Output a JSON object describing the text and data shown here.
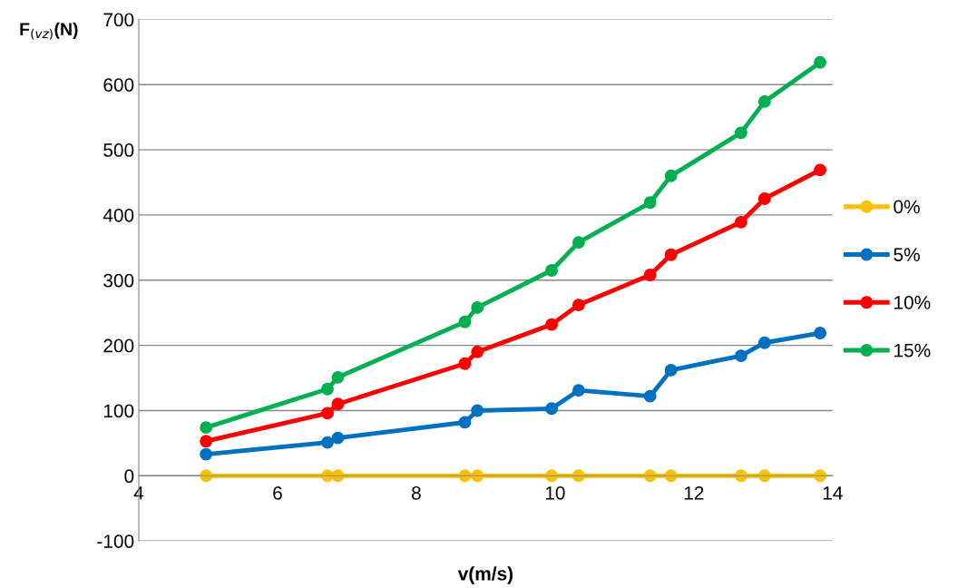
{
  "chart_data": {
    "type": "line",
    "xlabel": "v(m/s)",
    "ylabel": "F$_{(vz)}$(N)",
    "x": [
      4.97,
      6.72,
      6.87,
      8.7,
      8.88,
      9.95,
      10.34,
      11.37,
      11.67,
      12.68,
      13.02,
      13.82
    ],
    "series": [
      {
        "name": "0%",
        "color": "#ffc000",
        "values": [
          0,
          0,
          0,
          0,
          0,
          0,
          0,
          0,
          0,
          0,
          0,
          0
        ]
      },
      {
        "name": "5%",
        "color": "#0070c0",
        "values": [
          33,
          51,
          58,
          82,
          100,
          103,
          131,
          122,
          162,
          184,
          204,
          219
        ]
      },
      {
        "name": "10%",
        "color": "#ff0000",
        "values": [
          53,
          96,
          110,
          172,
          190,
          232,
          262,
          308,
          339,
          389,
          425,
          469
        ]
      },
      {
        "name": "15%",
        "color": "#00b050",
        "values": [
          74,
          133,
          151,
          236,
          258,
          315,
          358,
          419,
          460,
          526,
          574,
          634
        ]
      }
    ],
    "xlim": [
      4,
      14
    ],
    "xticks": [
      4,
      6,
      8,
      10,
      12,
      14
    ],
    "ylim": [
      -100,
      700
    ],
    "yticks": [
      -100,
      0,
      100,
      200,
      300,
      400,
      500,
      600,
      700
    ],
    "grid": "y",
    "legend": "right",
    "marker": "circle",
    "line_style": "solid"
  }
}
